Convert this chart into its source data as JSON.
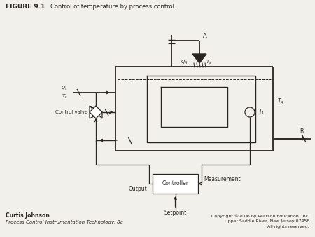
{
  "title": "FIGURE 9.1",
  "title_desc": "Control of temperature by process control.",
  "bg_color": "#f2f0eb",
  "line_color": "#2a2520",
  "author_name": "Curtis Johnson",
  "author_book": "Process Control Instrumentation Technology, 8e",
  "copyright_1": "Copyright ©2006 by Pearson Education, Inc.",
  "copyright_2": "Upper Saddle River, New Jersey 07458",
  "copyright_3": "All rights reserved."
}
